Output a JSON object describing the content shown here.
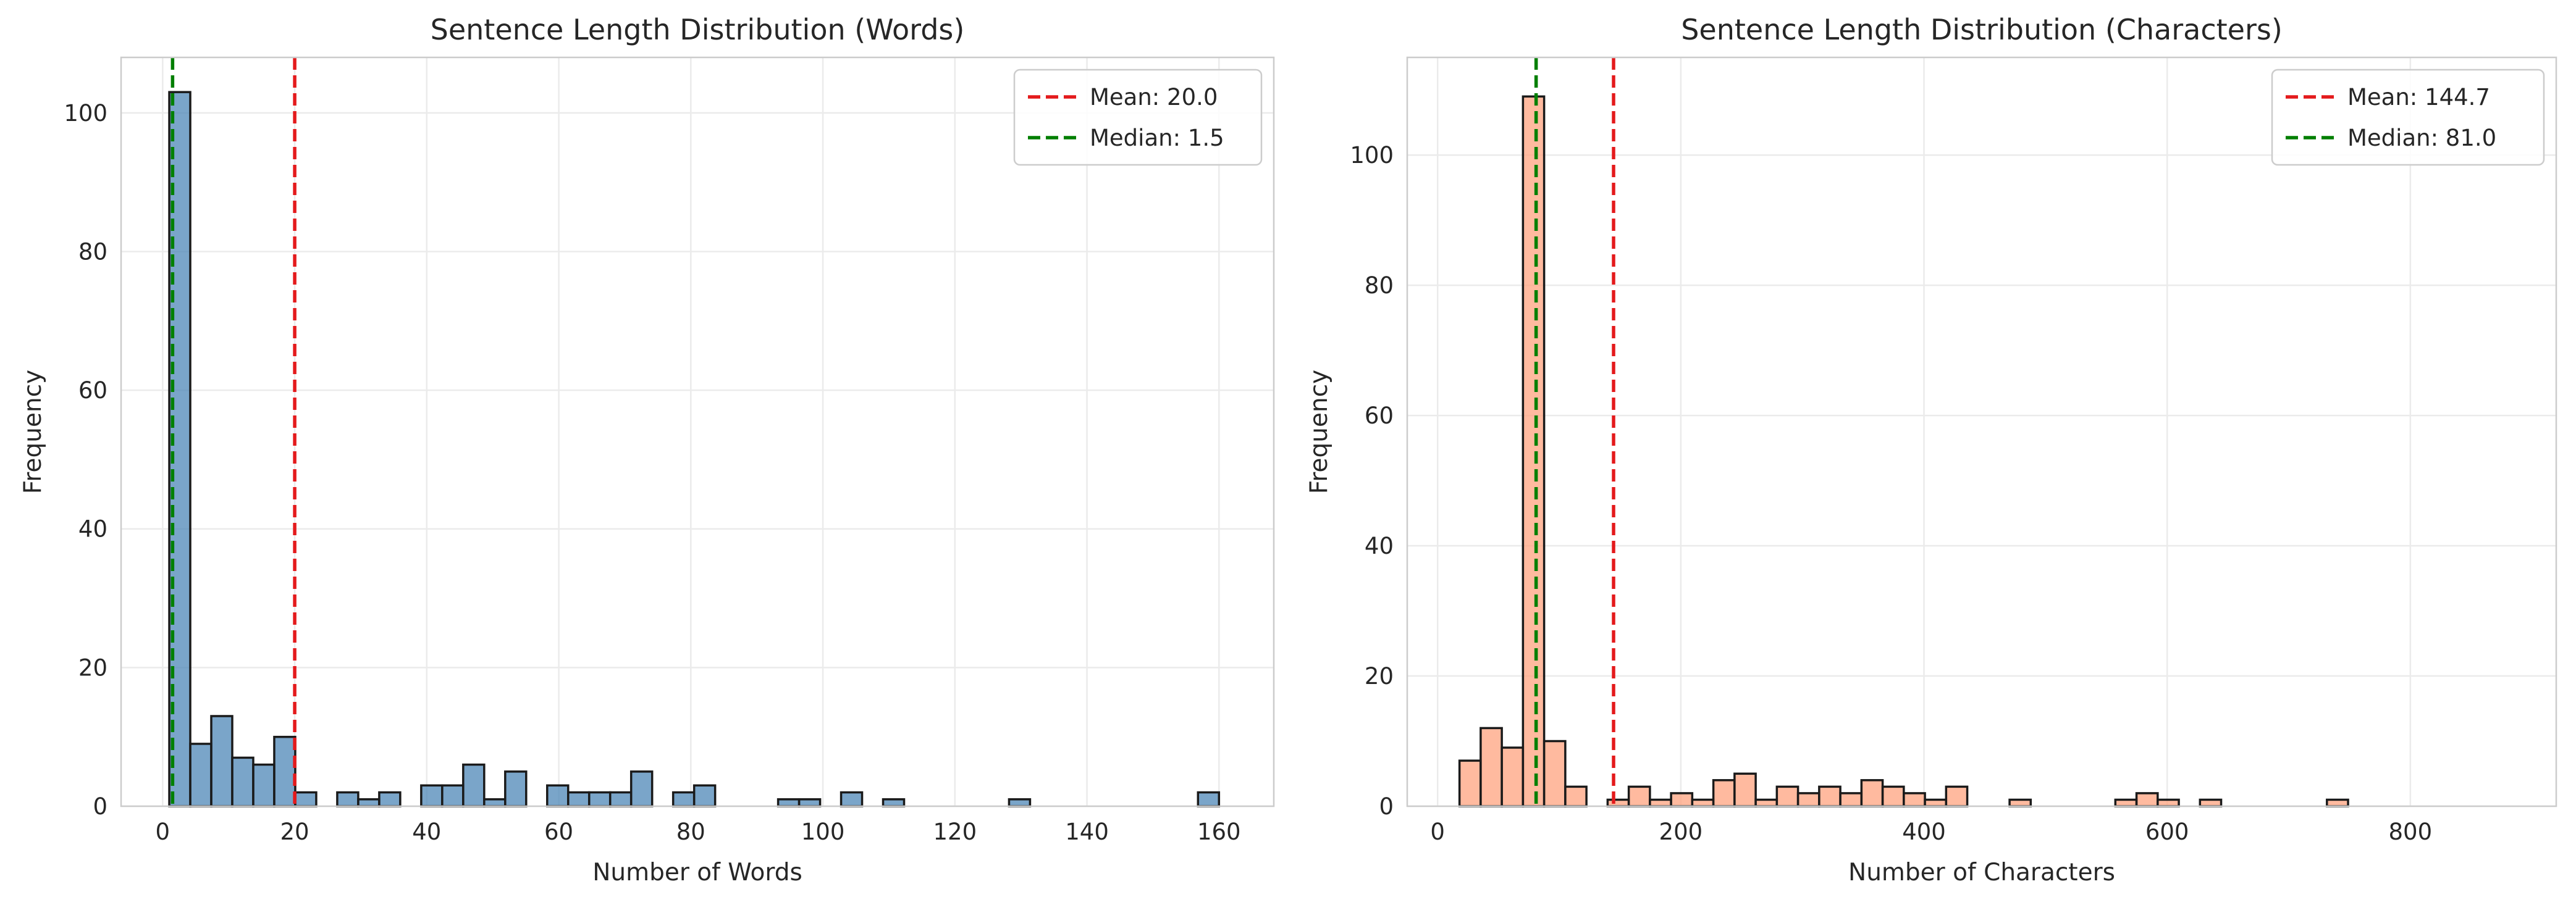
{
  "chart_data": [
    {
      "type": "bar",
      "title": "Sentence Length Distribution (Words)",
      "xlabel": "Number of Words",
      "ylabel": "Frequency",
      "xlim": [
        -6.3,
        168.3
      ],
      "ylim": [
        0,
        108
      ],
      "xticks": [
        0,
        20,
        40,
        60,
        80,
        100,
        120,
        140,
        160
      ],
      "yticks": [
        0,
        20,
        40,
        60,
        80,
        100
      ],
      "grid": true,
      "bar_color": "#4682b4",
      "bin_start": 1,
      "bin_width": 3.18,
      "values": [
        103,
        9,
        13,
        7,
        6,
        10,
        2,
        0,
        2,
        1,
        2,
        0,
        3,
        3,
        6,
        1,
        5,
        0,
        3,
        2,
        2,
        2,
        5,
        0,
        2,
        3,
        0,
        0,
        0,
        1,
        1,
        0,
        2,
        0,
        1,
        0,
        0,
        0,
        0,
        0,
        1,
        0,
        0,
        0,
        0,
        0,
        0,
        0,
        0,
        2
      ],
      "lines": [
        {
          "label": "Mean: 20.0",
          "x": 20.0,
          "color": "#e41a1c"
        },
        {
          "label": "Median: 1.5",
          "x": 1.5,
          "color": "#007f00"
        }
      ],
      "legend": "top-right"
    },
    {
      "type": "bar",
      "title": "Sentence Length Distribution (Characters)",
      "xlabel": "Number of Characters",
      "ylabel": "Frequency",
      "xlim": [
        -25,
        920
      ],
      "ylim": [
        0,
        115
      ],
      "xticks": [
        0,
        200,
        400,
        600,
        800
      ],
      "yticks": [
        0,
        20,
        40,
        60,
        80,
        100
      ],
      "grid": true,
      "bar_color": "#ffa07a",
      "bin_start": 18,
      "bin_width": 17.4,
      "values": [
        7,
        12,
        9,
        109,
        10,
        3,
        0,
        1,
        3,
        1,
        2,
        1,
        4,
        5,
        1,
        3,
        2,
        3,
        2,
        4,
        3,
        2,
        1,
        3,
        0,
        0,
        1,
        0,
        0,
        0,
        0,
        1,
        2,
        1,
        0,
        1,
        0,
        0,
        0,
        0,
        0,
        1,
        0,
        0,
        0,
        0,
        0,
        0,
        0,
        0,
        0,
        0,
        0,
        0,
        0,
        0,
        0,
        0,
        0,
        0,
        0,
        0,
        0,
        0,
        0,
        0,
        0,
        0,
        0,
        0,
        0,
        0,
        0,
        0,
        0,
        0,
        0,
        0
      ],
      "lines": [
        {
          "label": "Mean: 144.7",
          "x": 144.7,
          "color": "#e41a1c"
        },
        {
          "label": "Median: 81.0",
          "x": 81.0,
          "color": "#007f00"
        }
      ],
      "legend": "top-right"
    }
  ]
}
